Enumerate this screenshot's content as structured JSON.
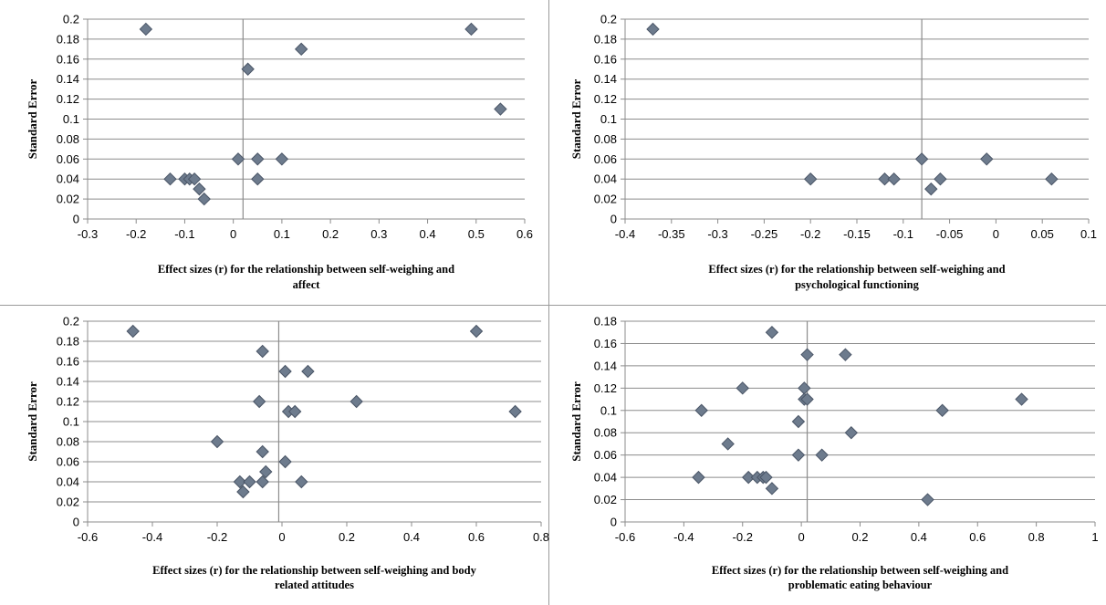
{
  "chart_data": [
    {
      "type": "scatter",
      "xlabel_lines": [
        "Effect sizes (r) for the relationship between self-weighing and",
        "affect"
      ],
      "ylabel": "Standard Error",
      "x_ticks": [
        "-0.3",
        "-0.2",
        "-0.1",
        "0",
        "0.1",
        "0.2",
        "0.3",
        "0.4",
        "0.5",
        "0.6"
      ],
      "y_ticks": [
        "0",
        "0.02",
        "0.04",
        "0.06",
        "0.08",
        "0.1",
        "0.12",
        "0.14",
        "0.16",
        "0.18",
        "0.2"
      ],
      "xlim": [
        -0.3,
        0.6
      ],
      "ylim": [
        0,
        0.2
      ],
      "grid": "horizontal",
      "reference_line_x": 0.02,
      "marker_color": "#6d7b8d",
      "points": [
        {
          "x": -0.18,
          "y": 0.19
        },
        {
          "x": 0.49,
          "y": 0.19
        },
        {
          "x": 0.14,
          "y": 0.17
        },
        {
          "x": 0.03,
          "y": 0.15
        },
        {
          "x": 0.55,
          "y": 0.11
        },
        {
          "x": 0.01,
          "y": 0.06
        },
        {
          "x": 0.05,
          "y": 0.06
        },
        {
          "x": 0.1,
          "y": 0.06
        },
        {
          "x": -0.13,
          "y": 0.04
        },
        {
          "x": -0.1,
          "y": 0.04
        },
        {
          "x": -0.09,
          "y": 0.04
        },
        {
          "x": -0.08,
          "y": 0.04
        },
        {
          "x": 0.05,
          "y": 0.04
        },
        {
          "x": -0.07,
          "y": 0.03
        },
        {
          "x": -0.06,
          "y": 0.02
        }
      ]
    },
    {
      "type": "scatter",
      "xlabel_lines": [
        "Effect sizes (r) for the relationship between self-weighing and",
        "psychological functioning"
      ],
      "ylabel": "Standard Error",
      "x_ticks": [
        "-0.4",
        "-0.35",
        "-0.3",
        "-0.25",
        "-0.2",
        "-0.15",
        "-0.1",
        "-0.05",
        "0",
        "0.05",
        "0.1"
      ],
      "y_ticks": [
        "0",
        "0.02",
        "0.04",
        "0.06",
        "0.08",
        "0.1",
        "0.12",
        "0.14",
        "0.16",
        "0.18",
        "0.2"
      ],
      "xlim": [
        -0.4,
        0.1
      ],
      "ylim": [
        0,
        0.2
      ],
      "grid": "horizontal",
      "reference_line_x": -0.08,
      "marker_color": "#6d7b8d",
      "points": [
        {
          "x": -0.37,
          "y": 0.19
        },
        {
          "x": -0.2,
          "y": 0.04
        },
        {
          "x": -0.12,
          "y": 0.04
        },
        {
          "x": -0.11,
          "y": 0.04
        },
        {
          "x": -0.08,
          "y": 0.06
        },
        {
          "x": -0.07,
          "y": 0.03
        },
        {
          "x": -0.06,
          "y": 0.04
        },
        {
          "x": -0.01,
          "y": 0.06
        },
        {
          "x": 0.06,
          "y": 0.04
        }
      ]
    },
    {
      "type": "scatter",
      "xlabel_lines": [
        "Effect sizes (r) for the relationship between self-weighing and  body",
        "related attitudes"
      ],
      "ylabel": "Standard Error",
      "x_ticks": [
        "-0.6",
        "-0.4",
        "-0.2",
        "0",
        "0.2",
        "0.4",
        "0.6",
        "0.8"
      ],
      "y_ticks": [
        "0",
        "0.02",
        "0.04",
        "0.06",
        "0.08",
        "0.1",
        "0.12",
        "0.14",
        "0.16",
        "0.18",
        "0.2"
      ],
      "xlim": [
        -0.6,
        0.8
      ],
      "ylim": [
        0,
        0.2
      ],
      "grid": "horizontal",
      "reference_line_x": -0.01,
      "marker_color": "#6d7b8d",
      "points": [
        {
          "x": -0.46,
          "y": 0.19
        },
        {
          "x": 0.6,
          "y": 0.19
        },
        {
          "x": -0.06,
          "y": 0.17
        },
        {
          "x": 0.01,
          "y": 0.15
        },
        {
          "x": 0.08,
          "y": 0.15
        },
        {
          "x": -0.07,
          "y": 0.12
        },
        {
          "x": 0.23,
          "y": 0.12
        },
        {
          "x": 0.02,
          "y": 0.11
        },
        {
          "x": 0.04,
          "y": 0.11
        },
        {
          "x": 0.72,
          "y": 0.11
        },
        {
          "x": -0.2,
          "y": 0.08
        },
        {
          "x": -0.06,
          "y": 0.07
        },
        {
          "x": 0.01,
          "y": 0.06
        },
        {
          "x": -0.05,
          "y": 0.05
        },
        {
          "x": -0.13,
          "y": 0.04
        },
        {
          "x": -0.1,
          "y": 0.04
        },
        {
          "x": -0.06,
          "y": 0.04
        },
        {
          "x": 0.06,
          "y": 0.04
        },
        {
          "x": -0.12,
          "y": 0.03
        }
      ]
    },
    {
      "type": "scatter",
      "xlabel_lines": [
        "Effect sizes (r) for the relationship between self-weighing and",
        "problematic eating behaviour"
      ],
      "ylabel": "Standard Error",
      "x_ticks": [
        "-0.6",
        "-0.4",
        "-0.2",
        "0",
        "0.2",
        "0.4",
        "0.6",
        "0.8",
        "1"
      ],
      "y_ticks": [
        "0",
        "0.02",
        "0.04",
        "0.06",
        "0.08",
        "0.1",
        "0.12",
        "0.14",
        "0.16",
        "0.18"
      ],
      "xlim": [
        -0.6,
        1
      ],
      "ylim": [
        0,
        0.18
      ],
      "grid": "horizontal",
      "reference_line_x": 0.02,
      "marker_color": "#6d7b8d",
      "points": [
        {
          "x": -0.1,
          "y": 0.17
        },
        {
          "x": 0.02,
          "y": 0.15
        },
        {
          "x": 0.15,
          "y": 0.15
        },
        {
          "x": -0.2,
          "y": 0.12
        },
        {
          "x": 0.01,
          "y": 0.12
        },
        {
          "x": 0.01,
          "y": 0.11
        },
        {
          "x": 0.02,
          "y": 0.11
        },
        {
          "x": 0.75,
          "y": 0.11
        },
        {
          "x": -0.34,
          "y": 0.1
        },
        {
          "x": 0.48,
          "y": 0.1
        },
        {
          "x": -0.01,
          "y": 0.09
        },
        {
          "x": 0.17,
          "y": 0.08
        },
        {
          "x": -0.25,
          "y": 0.07
        },
        {
          "x": -0.01,
          "y": 0.06
        },
        {
          "x": 0.07,
          "y": 0.06
        },
        {
          "x": -0.35,
          "y": 0.04
        },
        {
          "x": -0.18,
          "y": 0.04
        },
        {
          "x": -0.15,
          "y": 0.04
        },
        {
          "x": -0.13,
          "y": 0.04
        },
        {
          "x": -0.12,
          "y": 0.04
        },
        {
          "x": -0.1,
          "y": 0.03
        },
        {
          "x": 0.43,
          "y": 0.02
        }
      ]
    }
  ]
}
